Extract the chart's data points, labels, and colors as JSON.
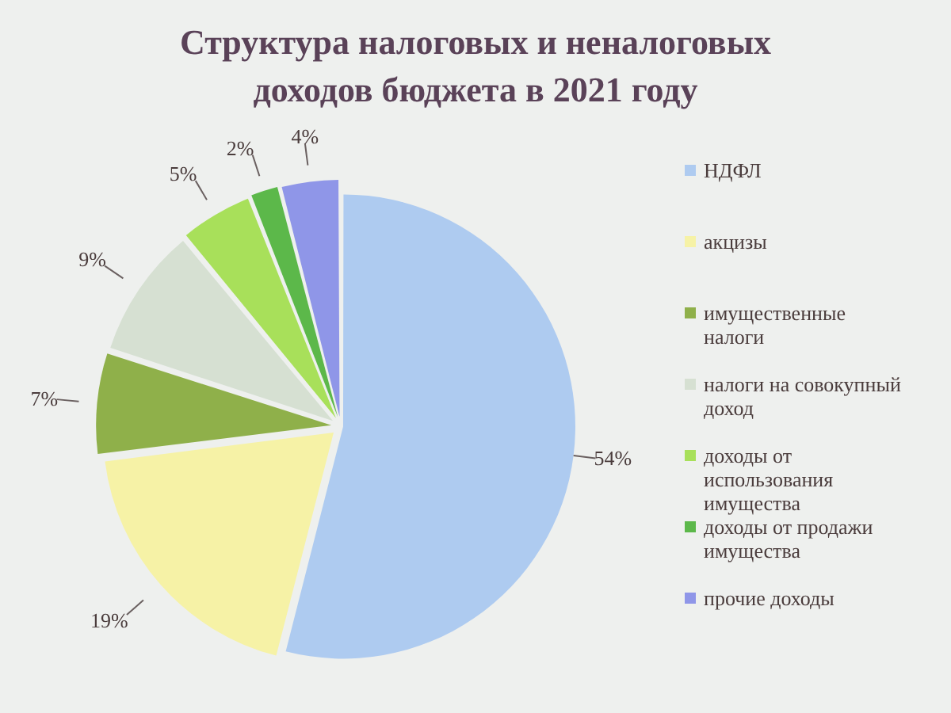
{
  "chart_data": {
    "type": "pie",
    "title": "Структура налоговых и неналоговых доходов бюджета в 2021 году",
    "categories": [
      "НДФЛ",
      "акцизы",
      "имущественные налоги",
      "налоги на совокупный доход",
      "доходы от использования имущества",
      "доходы от продажи имущества",
      "прочие доходы"
    ],
    "values": [
      54,
      19,
      7,
      9,
      5,
      2,
      4
    ],
    "colors": [
      "#aecbf0",
      "#f6f2a6",
      "#8fb04a",
      "#d6e0d2",
      "#a8e05a",
      "#5cb84a",
      "#8f96e8"
    ],
    "value_labels": [
      "54%",
      "19%",
      "7%",
      "9%",
      "5%",
      "2%",
      "4%"
    ],
    "legend": "right"
  }
}
